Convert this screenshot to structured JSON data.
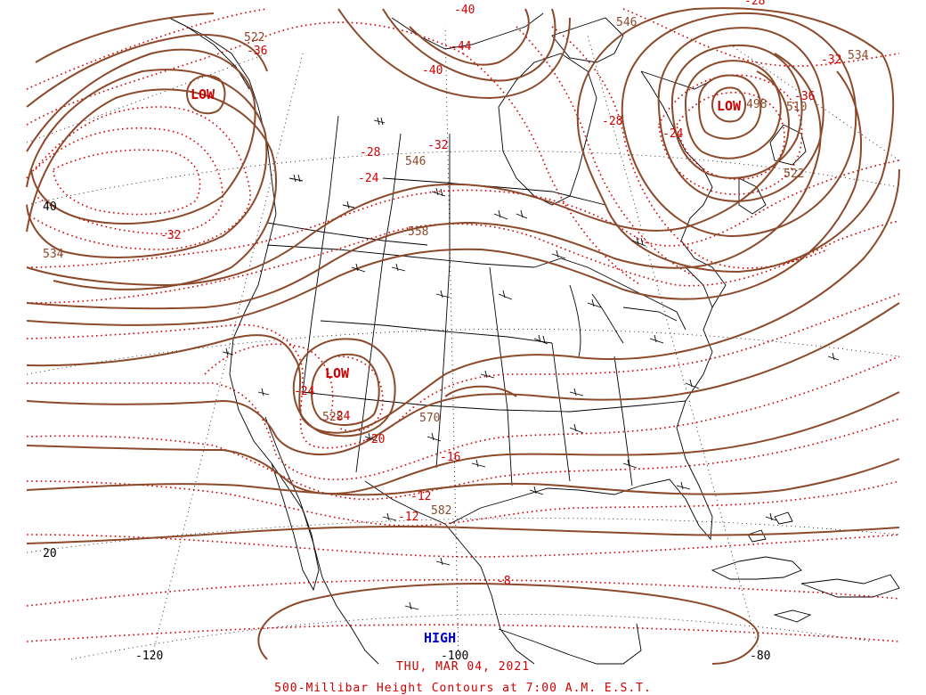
{
  "map": {
    "date": "THU, MAR 04, 2021",
    "title": "500-Millibar Height Contours at 7:00 A.M. E.S.T.",
    "colors": {
      "height": "#8b4a2b",
      "temperature": "#d00000",
      "low": "#d00000",
      "high": "#0000cc",
      "coast": "#000000",
      "grid": "#000000"
    },
    "lat_labels": [
      "40",
      "20"
    ],
    "lon_labels": [
      "-120",
      "-100",
      "-80"
    ],
    "systems": [
      {
        "type": "LOW",
        "color": "#d00000"
      },
      {
        "type": "LOW",
        "color": "#d00000"
      },
      {
        "type": "LOW",
        "color": "#d00000"
      },
      {
        "type": "HIGH",
        "color": "#0000cc"
      }
    ],
    "height_labels": [
      "522",
      "546",
      "534",
      "546",
      "558",
      "570",
      "582",
      "528",
      "498",
      "510",
      "522",
      "534"
    ],
    "temp_labels": [
      "-36",
      "-40",
      "-44",
      "-40",
      "-32",
      "-28",
      "-24",
      "-32",
      "-28",
      "-24",
      "-28",
      "-32",
      "-36",
      "-24",
      "-20",
      "-16",
      "-12",
      "-12",
      "-8",
      "-24"
    ]
  }
}
